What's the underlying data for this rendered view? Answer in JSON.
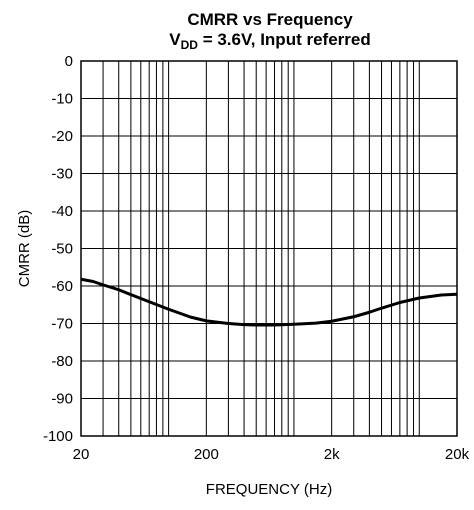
{
  "chart_data": {
    "type": "line",
    "title": "CMRR vs Frequency",
    "subtitle_parts": {
      "main": "V",
      "sub": "DD",
      "rest": " = 3.6V, Input referred"
    },
    "xlabel": "FREQUENCY (Hz)",
    "ylabel": "CMRR (dB)",
    "x_scale": "log",
    "xlim": [
      20,
      20000
    ],
    "ylim": [
      -100,
      0
    ],
    "x_ticks": [
      {
        "value": 20,
        "label": "20"
      },
      {
        "value": 200,
        "label": "200"
      },
      {
        "value": 2000,
        "label": "2k"
      },
      {
        "value": 20000,
        "label": "20k"
      }
    ],
    "y_ticks": [
      {
        "value": 0,
        "label": "0"
      },
      {
        "value": -10,
        "label": "-10"
      },
      {
        "value": -20,
        "label": "-20"
      },
      {
        "value": -30,
        "label": "-30"
      },
      {
        "value": -40,
        "label": "-40"
      },
      {
        "value": -50,
        "label": "-50"
      },
      {
        "value": -60,
        "label": "-60"
      },
      {
        "value": -70,
        "label": "-70"
      },
      {
        "value": -80,
        "label": "-80"
      },
      {
        "value": -90,
        "label": "-90"
      },
      {
        "value": -100,
        "label": "-100"
      }
    ],
    "grid": true,
    "series": [
      {
        "color": "#000000",
        "x": [
          20,
          25,
          30,
          40,
          50,
          70,
          100,
          150,
          200,
          300,
          400,
          500,
          700,
          1000,
          1500,
          2000,
          3000,
          4000,
          5000,
          7000,
          10000,
          15000,
          20000
        ],
        "y": [
          -58.2,
          -58.8,
          -59.7,
          -61.0,
          -62.3,
          -64.2,
          -66.2,
          -68.3,
          -69.3,
          -70.0,
          -70.3,
          -70.4,
          -70.4,
          -70.2,
          -69.9,
          -69.4,
          -68.2,
          -67.0,
          -65.9,
          -64.4,
          -63.2,
          -62.4,
          -62.2
        ]
      }
    ]
  }
}
